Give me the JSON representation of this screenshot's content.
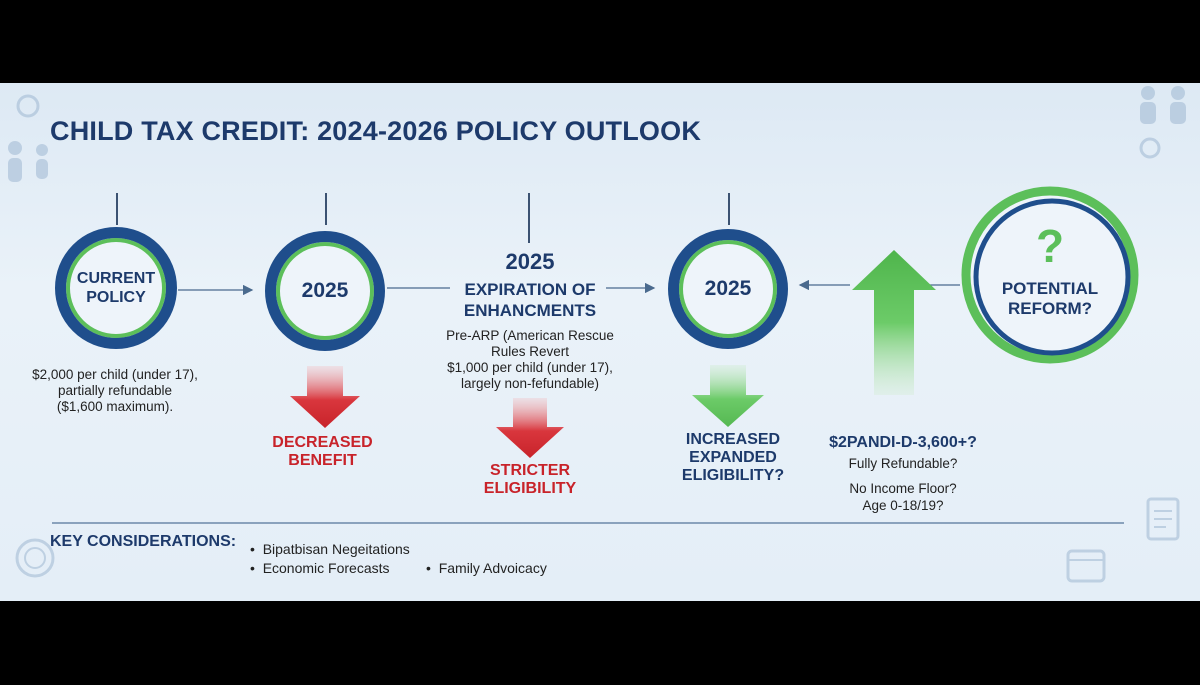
{
  "title": "CHILD TAX CREDIT: 2024-2026 POLICY OUTLOOK",
  "stage1": {
    "circle": "CURRENT POLICY",
    "desc": [
      "$2,000 per child (under 17),",
      "partially refundable",
      "($1,600 maximum)."
    ]
  },
  "stage2": {
    "circle": "2025",
    "outcome": [
      "DECREASED",
      "BENEFIT"
    ]
  },
  "stage3": {
    "year": "2025",
    "heading": [
      "EXPIRATION OF",
      "ENHANCMENTS"
    ],
    "desc": [
      "Pre-ARP (American Rescue",
      "Rules Revert",
      "$1,000 per child (under 17),",
      "largely non-fefundable)"
    ],
    "outcome": [
      "STRICTER",
      "ELIGIBILITY"
    ]
  },
  "stage4": {
    "circle": "2025",
    "outcome": [
      "INCREASED",
      "EXPANDED",
      "ELIGIBILITY?"
    ]
  },
  "stage5": {
    "symbol": "?",
    "circle": "POTENTIAL REFORM?",
    "amount": "$2PANDI-D-3,600+?",
    "details": [
      "Fully Refundable?",
      "No Income Floor?",
      "Age 0-18/19?"
    ]
  },
  "considerations": {
    "heading": "KEY CONSIDERATIONS:",
    "items": [
      "Bipatbisan Negeitations",
      "Economic Forecasts",
      "Family Advoicacy"
    ]
  },
  "colors": {
    "navy": "#1d3a6b",
    "ring_blue": "#1f4e8c",
    "green": "#5cbf5a",
    "red": "#c8232a"
  },
  "icons": [
    "family-icon",
    "coin-icon",
    "document-icon",
    "calendar-icon"
  ]
}
